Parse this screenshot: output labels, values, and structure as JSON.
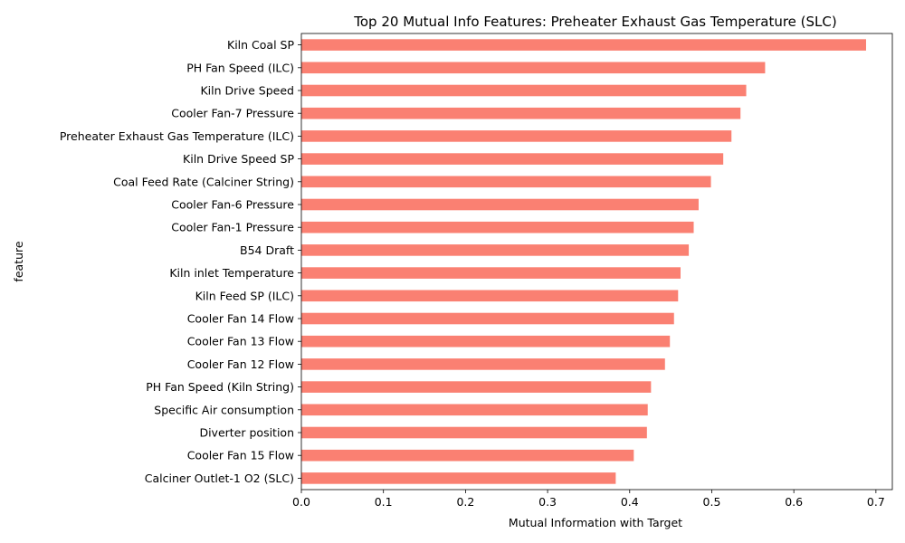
{
  "chart_data": {
    "type": "bar",
    "orientation": "horizontal",
    "title": "Top 20 Mutual Info Features: Preheater Exhaust Gas Temperature (SLC)",
    "xlabel": "Mutual Information with Target",
    "ylabel": "feature",
    "xlim": [
      0,
      0.72
    ],
    "xticks": [
      "0.0",
      "0.1",
      "0.2",
      "0.3",
      "0.4",
      "0.5",
      "0.6",
      "0.7"
    ],
    "grid": false,
    "bar_color": "#fa8072",
    "categories": [
      "Kiln Coal SP",
      "PH Fan Speed (ILC)",
      "Kiln Drive Speed",
      "Cooler Fan-7 Pressure",
      "Preheater Exhaust Gas Temperature (ILC)",
      "Kiln Drive Speed SP",
      "Coal Feed Rate (Calciner String)",
      "Cooler Fan-6 Pressure",
      "Cooler Fan-1 Pressure",
      "B54 Draft",
      "Kiln inlet Temperature",
      "Kiln Feed  SP  (ILC)",
      "Cooler Fan 14 Flow",
      "Cooler Fan 13 Flow",
      "Cooler Fan 12 Flow",
      "PH Fan Speed  (Kiln String)",
      "Specific Air consumption",
      "Diverter position",
      "Cooler Fan 15 Flow",
      "Calciner Outlet-1 O2 (SLC)"
    ],
    "values": [
      0.688,
      0.565,
      0.542,
      0.535,
      0.524,
      0.514,
      0.499,
      0.484,
      0.478,
      0.472,
      0.462,
      0.459,
      0.454,
      0.449,
      0.443,
      0.426,
      0.422,
      0.421,
      0.405,
      0.383
    ]
  }
}
